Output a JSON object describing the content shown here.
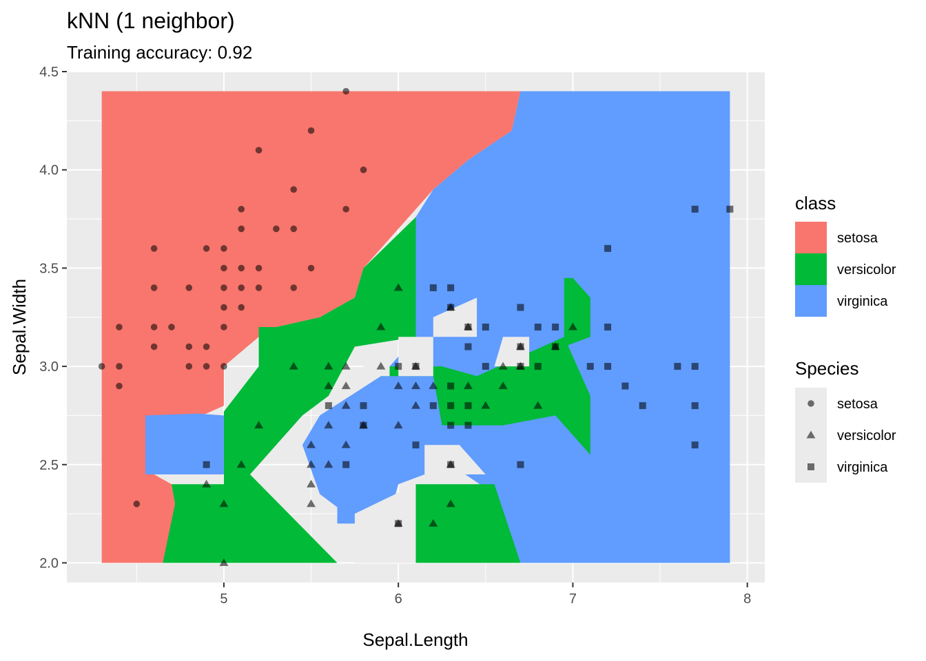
{
  "chart_data": {
    "type": "scatter",
    "title": "kNN (1 neighbor)",
    "subtitle": "Training accuracy: 0.92",
    "xlabel": "Sepal.Length",
    "ylabel": "Sepal.Width",
    "xlim": [
      4.1,
      8.1
    ],
    "ylim": [
      1.9,
      4.5
    ],
    "x_ticks": [
      5,
      6,
      7,
      8
    ],
    "y_ticks": [
      2.0,
      2.5,
      3.0,
      3.5,
      4.0,
      4.5
    ],
    "x_tick_labels": [
      "5",
      "6",
      "7",
      "8"
    ],
    "y_tick_labels": [
      "2.0",
      "2.5",
      "3.0",
      "3.5",
      "4.0",
      "4.5"
    ],
    "grid": true,
    "background": "#EBEBEB",
    "legend_position": "right",
    "class_legend": {
      "title": "class",
      "entries": [
        {
          "label": "setosa",
          "color": "#F8766D"
        },
        {
          "label": "versicolor",
          "color": "#00BA38"
        },
        {
          "label": "virginica",
          "color": "#619CFF"
        }
      ]
    },
    "species_legend": {
      "title": "Species",
      "entries": [
        {
          "label": "setosa",
          "shape": "circle"
        },
        {
          "label": "versicolor",
          "shape": "triangle"
        },
        {
          "label": "virginica",
          "shape": "square"
        }
      ]
    },
    "regions": {
      "grid_extent": {
        "x": [
          4.3,
          7.9
        ],
        "y": [
          2.0,
          4.4
        ]
      },
      "setosa": [
        [
          4.3,
          2.0
        ],
        [
          4.3,
          4.4
        ],
        [
          6.7,
          4.4
        ],
        [
          6.65,
          4.2
        ],
        [
          6.4,
          4.05
        ],
        [
          6.2,
          3.9
        ],
        [
          6.0,
          3.7
        ],
        [
          5.8,
          3.5
        ],
        [
          5.75,
          3.35
        ],
        [
          5.55,
          3.25
        ],
        [
          5.3,
          3.2
        ],
        [
          5.2,
          3.15
        ],
        [
          5.0,
          3.0
        ],
        [
          5.0,
          2.8
        ],
        [
          4.9,
          2.76
        ],
        [
          4.65,
          2.7
        ],
        [
          4.6,
          2.6
        ],
        [
          4.6,
          2.45
        ],
        [
          4.7,
          2.4
        ],
        [
          4.72,
          2.3
        ],
        [
          4.7,
          2.1
        ],
        [
          4.65,
          2.0
        ]
      ],
      "versicolor": [
        [
          4.65,
          2.0
        ],
        [
          4.72,
          2.3
        ],
        [
          4.7,
          2.4
        ],
        [
          5.0,
          2.4
        ],
        [
          5.0,
          2.77
        ],
        [
          5.2,
          3.0
        ],
        [
          5.2,
          3.2
        ],
        [
          5.3,
          3.2
        ],
        [
          5.55,
          3.25
        ],
        [
          5.75,
          3.35
        ],
        [
          5.8,
          3.5
        ],
        [
          6.1,
          3.76
        ],
        [
          6.1,
          3.15
        ],
        [
          5.75,
          3.1
        ],
        [
          5.6,
          2.85
        ],
        [
          5.45,
          2.75
        ],
        [
          5.15,
          2.45
        ],
        [
          5.65,
          2.0
        ]
      ],
      "virginica": [
        [
          6.7,
          4.4
        ],
        [
          7.9,
          4.4
        ],
        [
          7.9,
          2.0
        ],
        [
          6.7,
          2.0
        ],
        [
          6.55,
          2.35
        ],
        [
          6.3,
          2.5
        ],
        [
          6.0,
          2.4
        ],
        [
          5.95,
          2.25
        ],
        [
          5.7,
          2.25
        ],
        [
          5.55,
          2.35
        ],
        [
          5.45,
          2.6
        ],
        [
          5.55,
          2.75
        ],
        [
          5.9,
          2.95
        ],
        [
          6.1,
          3.15
        ],
        [
          6.1,
          3.76
        ],
        [
          6.2,
          3.9
        ],
        [
          6.4,
          4.05
        ],
        [
          6.65,
          4.2
        ]
      ],
      "patches": [
        {
          "class": "versicolor",
          "polygon": [
            [
              6.1,
              2.0
            ],
            [
              6.1,
              2.4
            ],
            [
              6.55,
              2.4
            ],
            [
              6.7,
              2.0
            ]
          ]
        },
        {
          "class": "versicolor",
          "polygon": [
            [
              5.9,
              2.95
            ],
            [
              6.2,
              2.95
            ],
            [
              6.25,
              2.7
            ],
            [
              6.6,
              2.7
            ],
            [
              6.9,
              2.75
            ],
            [
              7.05,
              2.6
            ],
            [
              7.1,
              2.55
            ],
            [
              7.1,
              2.85
            ],
            [
              7.0,
              3.05
            ],
            [
              6.95,
              3.15
            ],
            [
              6.7,
              3.05
            ],
            [
              6.45,
              2.95
            ],
            [
              6.25,
              3.0
            ],
            [
              5.95,
              3.0
            ]
          ]
        },
        {
          "class": "versicolor",
          "polygon": [
            [
              6.95,
              3.45
            ],
            [
              7.0,
              3.45
            ],
            [
              7.1,
              3.35
            ],
            [
              7.1,
              3.15
            ],
            [
              6.95,
              3.1
            ]
          ]
        },
        {
          "class": "virginica",
          "polygon": [
            [
              4.55,
              2.75
            ],
            [
              4.55,
              2.45
            ],
            [
              4.65,
              2.45
            ],
            [
              5.0,
              2.45
            ],
            [
              5.0,
              2.75
            ],
            [
              4.85,
              2.76
            ]
          ]
        },
        {
          "class": "virginica",
          "polygon": [
            [
              5.65,
              2.65
            ],
            [
              5.65,
              2.2
            ],
            [
              5.8,
              2.2
            ],
            [
              5.8,
              2.6
            ]
          ]
        },
        {
          "class": "none",
          "polygon": [
            [
              5.75,
              2.0
            ],
            [
              5.75,
              2.25
            ],
            [
              6.1,
              2.4
            ],
            [
              6.1,
              2.0
            ]
          ]
        },
        {
          "class": "none",
          "polygon": [
            [
              6.15,
              2.45
            ],
            [
              6.15,
              2.6
            ],
            [
              6.35,
              2.6
            ],
            [
              6.5,
              2.45
            ]
          ]
        },
        {
          "class": "none",
          "polygon": [
            [
              5.8,
              2.95
            ],
            [
              5.8,
              3.1
            ],
            [
              5.95,
              3.1
            ],
            [
              5.95,
              2.95
            ]
          ]
        },
        {
          "class": "none",
          "polygon": [
            [
              6.0,
              2.95
            ],
            [
              6.0,
              3.15
            ],
            [
              6.2,
              3.15
            ],
            [
              6.2,
              2.95
            ]
          ]
        },
        {
          "class": "none",
          "polygon": [
            [
              6.2,
              3.25
            ],
            [
              6.45,
              3.35
            ],
            [
              6.45,
              3.15
            ],
            [
              6.2,
              3.15
            ]
          ]
        },
        {
          "class": "none",
          "polygon": [
            [
              6.55,
              3.0
            ],
            [
              6.75,
              3.0
            ],
            [
              6.75,
              3.15
            ],
            [
              6.6,
              3.15
            ]
          ]
        }
      ]
    },
    "series": [
      {
        "name": "setosa",
        "shape": "circle",
        "points": [
          [
            4.3,
            3.0
          ],
          [
            4.4,
            2.9
          ],
          [
            4.4,
            3.0
          ],
          [
            4.4,
            3.2
          ],
          [
            4.5,
            2.3
          ],
          [
            4.6,
            3.1
          ],
          [
            4.6,
            3.2
          ],
          [
            4.6,
            3.4
          ],
          [
            4.6,
            3.6
          ],
          [
            4.7,
            3.2
          ],
          [
            4.8,
            3.0
          ],
          [
            4.8,
            3.1
          ],
          [
            4.8,
            3.4
          ],
          [
            4.9,
            3.0
          ],
          [
            4.9,
            3.1
          ],
          [
            4.9,
            3.6
          ],
          [
            5.0,
            3.0
          ],
          [
            5.0,
            3.2
          ],
          [
            5.0,
            3.3
          ],
          [
            5.0,
            3.4
          ],
          [
            5.0,
            3.5
          ],
          [
            5.0,
            3.6
          ],
          [
            5.1,
            3.3
          ],
          [
            5.1,
            3.4
          ],
          [
            5.1,
            3.5
          ],
          [
            5.1,
            3.7
          ],
          [
            5.1,
            3.8
          ],
          [
            5.2,
            3.4
          ],
          [
            5.2,
            3.5
          ],
          [
            5.2,
            4.1
          ],
          [
            5.3,
            3.7
          ],
          [
            5.4,
            3.4
          ],
          [
            5.4,
            3.7
          ],
          [
            5.4,
            3.9
          ],
          [
            5.5,
            3.5
          ],
          [
            5.5,
            4.2
          ],
          [
            5.7,
            3.8
          ],
          [
            5.7,
            4.4
          ],
          [
            5.8,
            4.0
          ]
        ]
      },
      {
        "name": "versicolor",
        "shape": "triangle",
        "points": [
          [
            4.9,
            2.4
          ],
          [
            5.0,
            2.0
          ],
          [
            5.0,
            2.3
          ],
          [
            5.1,
            2.5
          ],
          [
            5.2,
            2.7
          ],
          [
            5.4,
            3.0
          ],
          [
            5.5,
            2.3
          ],
          [
            5.5,
            2.4
          ],
          [
            5.5,
            2.5
          ],
          [
            5.5,
            2.6
          ],
          [
            5.6,
            2.5
          ],
          [
            5.6,
            2.7
          ],
          [
            5.6,
            2.9
          ],
          [
            5.6,
            3.0
          ],
          [
            5.7,
            2.6
          ],
          [
            5.7,
            2.8
          ],
          [
            5.7,
            2.9
          ],
          [
            5.7,
            3.0
          ],
          [
            5.8,
            2.7
          ],
          [
            5.9,
            3.0
          ],
          [
            5.9,
            3.2
          ],
          [
            6.0,
            2.2
          ],
          [
            6.0,
            2.7
          ],
          [
            6.0,
            2.9
          ],
          [
            6.0,
            3.4
          ],
          [
            6.1,
            2.8
          ],
          [
            6.1,
            2.9
          ],
          [
            6.1,
            3.0
          ],
          [
            6.2,
            2.2
          ],
          [
            6.2,
            2.9
          ],
          [
            6.3,
            2.3
          ],
          [
            6.3,
            2.5
          ],
          [
            6.3,
            3.3
          ],
          [
            6.4,
            2.9
          ],
          [
            6.4,
            3.2
          ],
          [
            6.5,
            2.8
          ],
          [
            6.6,
            2.9
          ],
          [
            6.6,
            3.0
          ],
          [
            6.7,
            3.0
          ],
          [
            6.7,
            3.1
          ],
          [
            6.8,
            2.8
          ],
          [
            6.9,
            3.1
          ],
          [
            7.0,
            3.2
          ]
        ]
      },
      {
        "name": "virginica",
        "shape": "square",
        "points": [
          [
            4.9,
            2.5
          ],
          [
            5.6,
            2.8
          ],
          [
            5.7,
            2.5
          ],
          [
            5.8,
            2.7
          ],
          [
            5.8,
            2.8
          ],
          [
            6.0,
            2.2
          ],
          [
            6.0,
            3.0
          ],
          [
            6.1,
            2.6
          ],
          [
            6.1,
            3.0
          ],
          [
            6.2,
            2.8
          ],
          [
            6.2,
            3.4
          ],
          [
            6.3,
            2.5
          ],
          [
            6.3,
            2.7
          ],
          [
            6.3,
            2.8
          ],
          [
            6.3,
            2.9
          ],
          [
            6.3,
            3.3
          ],
          [
            6.3,
            3.4
          ],
          [
            6.4,
            2.7
          ],
          [
            6.4,
            2.8
          ],
          [
            6.4,
            3.1
          ],
          [
            6.4,
            3.2
          ],
          [
            6.5,
            3.0
          ],
          [
            6.5,
            3.2
          ],
          [
            6.7,
            2.5
          ],
          [
            6.7,
            3.0
          ],
          [
            6.7,
            3.1
          ],
          [
            6.7,
            3.3
          ],
          [
            6.8,
            3.0
          ],
          [
            6.8,
            3.2
          ],
          [
            6.9,
            3.1
          ],
          [
            6.9,
            3.2
          ],
          [
            7.1,
            3.0
          ],
          [
            7.2,
            3.0
          ],
          [
            7.2,
            3.2
          ],
          [
            7.2,
            3.6
          ],
          [
            7.3,
            2.9
          ],
          [
            7.4,
            2.8
          ],
          [
            7.6,
            3.0
          ],
          [
            7.7,
            2.6
          ],
          [
            7.7,
            2.8
          ],
          [
            7.7,
            3.0
          ],
          [
            7.7,
            3.8
          ],
          [
            7.9,
            3.8
          ]
        ]
      }
    ]
  }
}
